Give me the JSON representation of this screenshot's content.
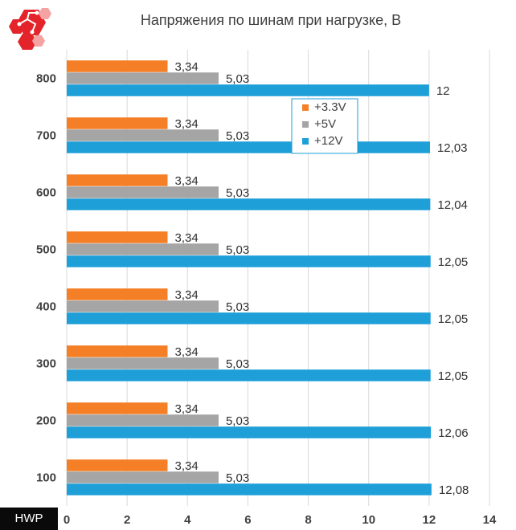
{
  "watermark_text": "HWP",
  "chart_data": {
    "type": "bar",
    "orientation": "horizontal",
    "title": "Напряжения по шинам при нагрузке, В",
    "categories": [
      "800",
      "700",
      "600",
      "500",
      "400",
      "300",
      "200",
      "100"
    ],
    "series": [
      {
        "name": "+3.3V",
        "color": "#f47f26",
        "values": [
          3.34,
          3.34,
          3.34,
          3.34,
          3.34,
          3.34,
          3.34,
          3.34
        ],
        "labels": [
          "3,34",
          "3,34",
          "3,34",
          "3,34",
          "3,34",
          "3,34",
          "3,34",
          "3,34"
        ]
      },
      {
        "name": "+5V",
        "color": "#a5a5a5",
        "values": [
          5.03,
          5.03,
          5.03,
          5.03,
          5.03,
          5.03,
          5.03,
          5.03
        ],
        "labels": [
          "5,03",
          "5,03",
          "5,03",
          "5,03",
          "5,03",
          "5,03",
          "5,03",
          "5,03"
        ]
      },
      {
        "name": "+12V",
        "color": "#1e9fd8",
        "values": [
          12,
          12.03,
          12.04,
          12.05,
          12.05,
          12.05,
          12.06,
          12.08
        ],
        "labels": [
          "12",
          "12,03",
          "12,04",
          "12,05",
          "12,05",
          "12,05",
          "12,06",
          "12,08"
        ]
      }
    ],
    "xlim": [
      0,
      14
    ],
    "xticks": [
      "0",
      "2",
      "4",
      "6",
      "8",
      "10",
      "12",
      "14"
    ],
    "grid": "vertical",
    "legend_position": "inside-center-top"
  }
}
